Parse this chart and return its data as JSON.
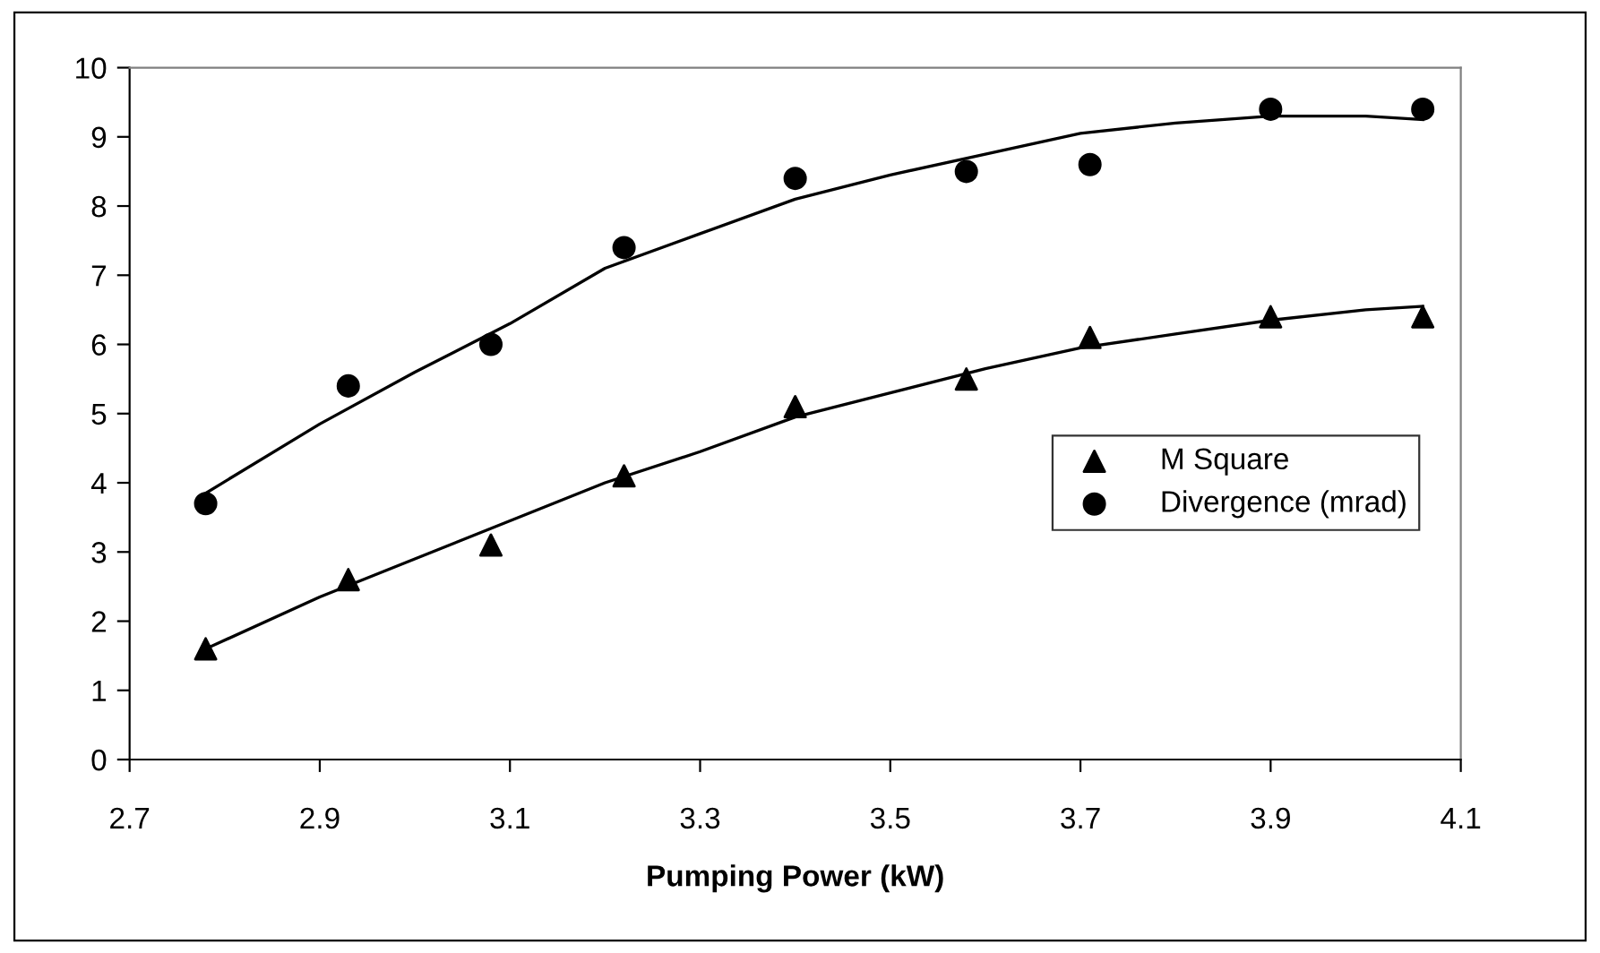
{
  "chart_data": {
    "type": "scatter",
    "xlabel": "Pumping Power (kW)",
    "xlim": [
      2.7,
      4.1
    ],
    "xticks": [
      2.7,
      2.9,
      3.1,
      3.3,
      3.5,
      3.7,
      3.9,
      4.1
    ],
    "ylim": [
      0,
      10
    ],
    "yticks": [
      0,
      1,
      2,
      3,
      4,
      5,
      6,
      7,
      8,
      9,
      10
    ],
    "grid": false,
    "legend": "right",
    "series": [
      {
        "name": "M Square",
        "color": "#000000",
        "marker": "triangle",
        "x": [
          2.78,
          2.93,
          3.08,
          3.22,
          3.4,
          3.58,
          3.71,
          3.9,
          4.06
        ],
        "values": [
          1.6,
          2.6,
          3.1,
          4.1,
          5.1,
          5.5,
          6.1,
          6.4,
          6.4
        ]
      },
      {
        "name": "Divergence (mrad)",
        "color": "#000000",
        "marker": "circle",
        "x": [
          2.78,
          2.93,
          3.08,
          3.22,
          3.4,
          3.58,
          3.71,
          3.9,
          4.06
        ],
        "values": [
          3.7,
          5.4,
          6.0,
          7.4,
          8.4,
          8.5,
          8.6,
          9.4,
          9.4
        ]
      },
      {
        "type": "line",
        "color": "#000000",
        "marker": "none",
        "line_style": "solid",
        "x": [
          2.78,
          2.9,
          3.0,
          3.1,
          3.2,
          3.3,
          3.4,
          3.5,
          3.6,
          3.7,
          3.8,
          3.9,
          4.0,
          4.06
        ],
        "values": [
          1.6,
          2.35,
          2.9,
          3.45,
          4.0,
          4.45,
          4.95,
          5.3,
          5.65,
          5.95,
          6.15,
          6.35,
          6.5,
          6.55
        ]
      },
      {
        "type": "line",
        "color": "#000000",
        "marker": "none",
        "line_style": "solid",
        "x": [
          2.78,
          2.9,
          3.0,
          3.1,
          3.2,
          3.3,
          3.4,
          3.5,
          3.6,
          3.7,
          3.8,
          3.9,
          4.0,
          4.06
        ],
        "values": [
          3.85,
          4.85,
          5.6,
          6.3,
          7.1,
          7.6,
          8.1,
          8.45,
          8.75,
          9.05,
          9.2,
          9.3,
          9.3,
          9.25
        ]
      }
    ]
  }
}
